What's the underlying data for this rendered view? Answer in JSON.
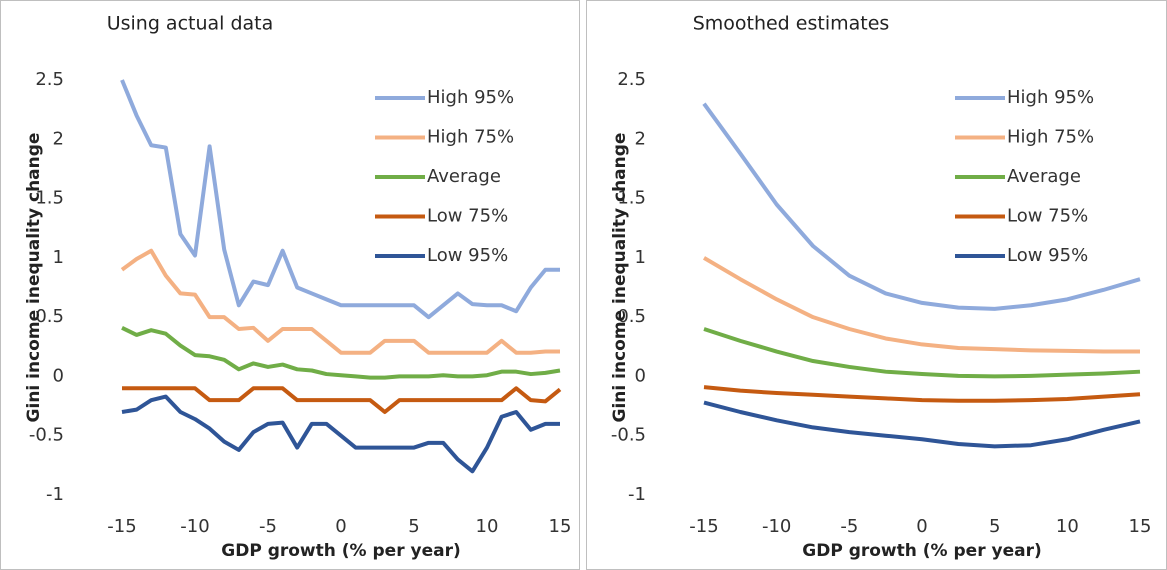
{
  "chart_data": [
    {
      "type": "line",
      "title": "Using actual data",
      "xlabel": "GDP growth (% per year)",
      "ylabel": "Gini income inequality change",
      "x": [
        -15,
        -14,
        -13,
        -12,
        -11,
        -10,
        -9,
        -8,
        -7,
        -6,
        -5,
        -4,
        -3,
        -2,
        -1,
        0,
        1,
        2,
        3,
        4,
        5,
        6,
        7,
        8,
        9,
        10,
        11,
        12,
        13,
        14,
        15
      ],
      "series": [
        {
          "name": "High 95%",
          "color": "#8faadc",
          "values": [
            2.5,
            2.2,
            1.95,
            1.93,
            1.2,
            1.02,
            1.94,
            1.07,
            0.6,
            0.8,
            0.77,
            1.06,
            0.75,
            0.7,
            0.65,
            0.6,
            0.6,
            0.6,
            0.6,
            0.6,
            0.6,
            0.5,
            0.6,
            0.7,
            0.61,
            0.6,
            0.6,
            0.55,
            0.75,
            0.9,
            0.9
          ]
        },
        {
          "name": "High 75%",
          "color": "#f4b183",
          "values": [
            0.9,
            0.99,
            1.06,
            0.85,
            0.7,
            0.69,
            0.5,
            0.5,
            0.4,
            0.41,
            0.3,
            0.4,
            0.4,
            0.4,
            0.3,
            0.2,
            0.2,
            0.2,
            0.3,
            0.3,
            0.3,
            0.2,
            0.2,
            0.2,
            0.2,
            0.2,
            0.3,
            0.2,
            0.2,
            0.21,
            0.21
          ]
        },
        {
          "name": "Average",
          "color": "#70ad47",
          "values": [
            0.41,
            0.35,
            0.39,
            0.36,
            0.26,
            0.18,
            0.17,
            0.14,
            0.06,
            0.11,
            0.08,
            0.1,
            0.06,
            0.05,
            0.02,
            0.01,
            0.0,
            -0.01,
            -0.01,
            0,
            0,
            0,
            0.01,
            0,
            0,
            0.01,
            0.04,
            0.04,
            0.02,
            0.03,
            0.05
          ]
        },
        {
          "name": "Low 75%",
          "color": "#c55a11",
          "values": [
            -0.1,
            -0.1,
            -0.1,
            -0.1,
            -0.1,
            -0.1,
            -0.2,
            -0.2,
            -0.2,
            -0.1,
            -0.1,
            -0.1,
            -0.2,
            -0.2,
            -0.2,
            -0.2,
            -0.2,
            -0.2,
            -0.3,
            -0.2,
            -0.2,
            -0.2,
            -0.2,
            -0.2,
            -0.2,
            -0.2,
            -0.2,
            -0.1,
            -0.2,
            -0.21,
            -0.11
          ]
        },
        {
          "name": "Low 95%",
          "color": "#2f5597",
          "values": [
            -0.3,
            -0.28,
            -0.2,
            -0.17,
            -0.3,
            -0.36,
            -0.44,
            -0.55,
            -0.62,
            -0.47,
            -0.4,
            -0.39,
            -0.6,
            -0.4,
            -0.4,
            -0.5,
            -0.6,
            -0.6,
            -0.6,
            -0.6,
            -0.6,
            -0.56,
            -0.56,
            -0.7,
            -0.8,
            -0.6,
            -0.34,
            -0.3,
            -0.45,
            -0.4,
            -0.4
          ]
        }
      ],
      "xlim": [
        -15,
        15
      ],
      "ylim": [
        -1,
        2.5
      ],
      "xticks": [
        -15,
        -10,
        -5,
        0,
        5,
        10,
        15
      ],
      "yticks": [
        -1,
        -0.5,
        0,
        0.5,
        1,
        1.5,
        2,
        2.5
      ],
      "legend": "upper right"
    },
    {
      "type": "line",
      "title": "Smoothed estimates",
      "xlabel": "GDP growth (% per year)",
      "ylabel": "Gini income inequality change",
      "x": [
        -15,
        -12.5,
        -10,
        -7.5,
        -5,
        -2.5,
        0,
        2.5,
        5,
        7.5,
        10,
        12.5,
        15
      ],
      "series": [
        {
          "name": "High 95%",
          "color": "#8faadc",
          "values": [
            2.3,
            1.88,
            1.45,
            1.1,
            0.85,
            0.7,
            0.62,
            0.58,
            0.57,
            0.6,
            0.65,
            0.73,
            0.82
          ]
        },
        {
          "name": "High 75%",
          "color": "#f4b183",
          "values": [
            1.0,
            0.82,
            0.65,
            0.5,
            0.4,
            0.32,
            0.27,
            0.24,
            0.23,
            0.22,
            0.215,
            0.21,
            0.21
          ]
        },
        {
          "name": "Average",
          "color": "#70ad47",
          "values": [
            0.4,
            0.3,
            0.21,
            0.13,
            0.08,
            0.04,
            0.02,
            0.005,
            0,
            0.005,
            0.015,
            0.025,
            0.04
          ]
        },
        {
          "name": "Low 75%",
          "color": "#c55a11",
          "values": [
            -0.09,
            -0.12,
            -0.14,
            -0.155,
            -0.17,
            -0.185,
            -0.2,
            -0.205,
            -0.205,
            -0.2,
            -0.19,
            -0.17,
            -0.15
          ]
        },
        {
          "name": "Low 95%",
          "color": "#2f5597",
          "values": [
            -0.22,
            -0.3,
            -0.37,
            -0.43,
            -0.47,
            -0.5,
            -0.53,
            -0.57,
            -0.59,
            -0.58,
            -0.53,
            -0.45,
            -0.38
          ]
        }
      ],
      "xlim": [
        -15,
        15
      ],
      "ylim": [
        -1,
        2.5
      ],
      "xticks": [
        -15,
        -10,
        -5,
        0,
        5,
        10,
        15
      ],
      "yticks": [
        -1,
        -0.5,
        0,
        0.5,
        1,
        1.5,
        2,
        2.5
      ],
      "legend": "upper right"
    }
  ]
}
